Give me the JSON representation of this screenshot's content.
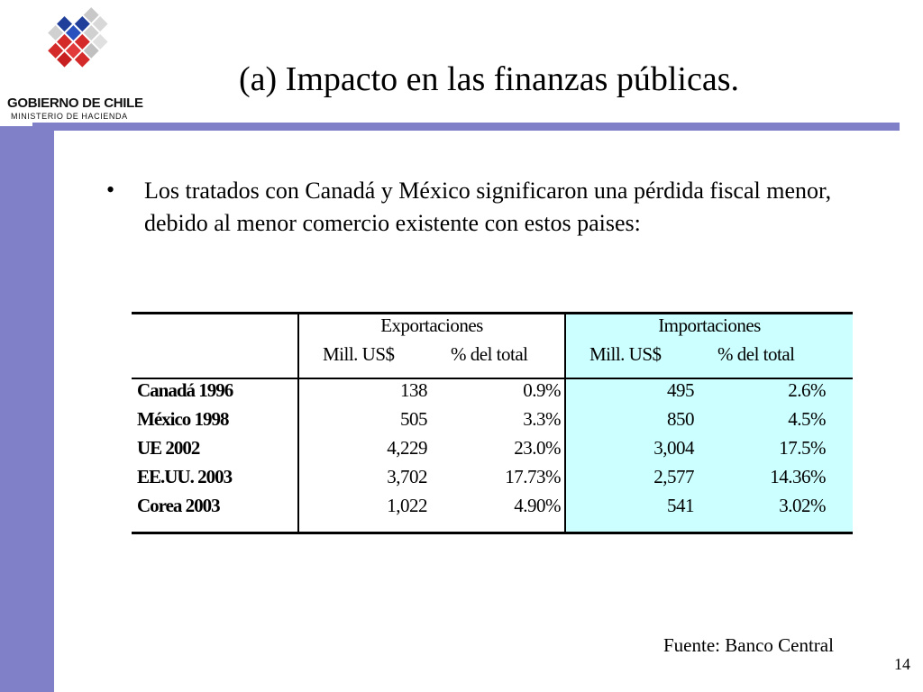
{
  "logo": {
    "name": "GOBIERNO DE CHILE",
    "subtitle": "MINISTERIO DE HACIENDA"
  },
  "slide": {
    "title": "(a) Impacto en las finanzas públicas.",
    "bullet_symbol": "•",
    "bullet": "Los tratados con  Canadá y México significaron una pérdida fiscal menor, debido al menor comercio existente con estos paises:"
  },
  "table": {
    "groups": [
      "Exportaciones",
      "Importaciones"
    ],
    "subheaders": [
      "Mill. US$",
      "% del total",
      "Mill. US$",
      "% del total"
    ],
    "rows": [
      {
        "label": "Canadá 1996",
        "values": [
          "138",
          "0.9%",
          "495",
          "2.6%"
        ]
      },
      {
        "label": "México 1998",
        "values": [
          "505",
          "3.3%",
          "850",
          "4.5%"
        ]
      },
      {
        "label": "UE 2002",
        "values": [
          "4,229",
          "23.0%",
          "3,004",
          "17.5%"
        ]
      },
      {
        "label": "EE.UU. 2003",
        "values": [
          "3,702",
          "17.73%",
          "2,577",
          "14.36%"
        ]
      },
      {
        "label": "Corea 2003",
        "values": [
          "1,022",
          "4.90%",
          "541",
          "3.02%"
        ]
      }
    ]
  },
  "source": "Fuente: Banco Central",
  "page_number": "14",
  "colors": {
    "accent": "#8080c8",
    "imports_bg": "#ccffff",
    "logo_red": "#d42a2a",
    "logo_blue": "#1f3f9a"
  }
}
